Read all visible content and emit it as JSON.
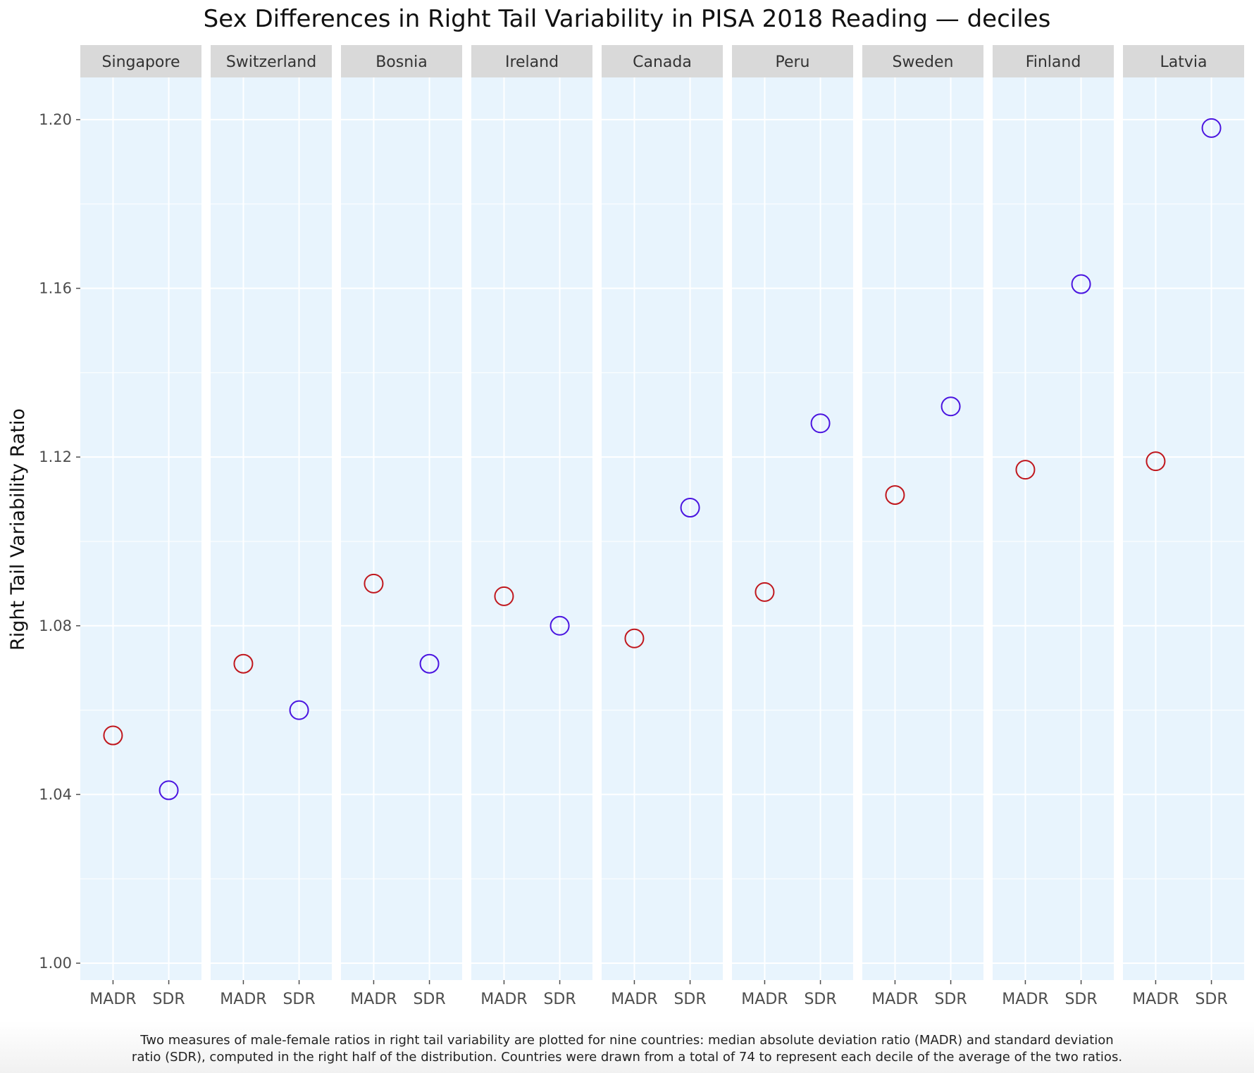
{
  "chart_data": {
    "type": "scatter",
    "title": "Sex Differences in Right Tail Variability in PISA 2018 Reading — deciles",
    "ylabel": "Right Tail Variability Ratio",
    "xlabel": "",
    "categories": [
      "MADR",
      "SDR"
    ],
    "ylim": [
      0.996,
      1.21
    ],
    "yticks": [
      "1.00",
      "1.04",
      "1.08",
      "1.12",
      "1.16",
      "1.20"
    ],
    "grid": true,
    "facets": [
      {
        "name": "Singapore",
        "values": [
          1.054,
          1.041
        ]
      },
      {
        "name": "Switzerland",
        "values": [
          1.071,
          1.06
        ]
      },
      {
        "name": "Bosnia",
        "values": [
          1.09,
          1.071
        ]
      },
      {
        "name": "Ireland",
        "values": [
          1.087,
          1.08
        ]
      },
      {
        "name": "Canada",
        "values": [
          1.077,
          1.108
        ]
      },
      {
        "name": "Peru",
        "values": [
          1.088,
          1.128
        ]
      },
      {
        "name": "Sweden",
        "values": [
          1.111,
          1.132
        ]
      },
      {
        "name": "Finland",
        "values": [
          1.117,
          1.161
        ]
      },
      {
        "name": "Latvia",
        "values": [
          1.119,
          1.198
        ]
      }
    ],
    "colors": {
      "MADR": "#c0171d",
      "SDR": "#4a14e0",
      "panel_bg": "#e8f4fd",
      "strip_bg": "#d9d9d9",
      "grid": "#ffffff"
    },
    "caption": [
      "Two measures of male-female ratios in right tail variability are plotted for nine countries: median absolute deviation ratio (MADR) and standard deviation",
      "ratio (SDR), computed in the right half of the distribution. Countries were drawn from a total of 74 to represent each decile of the average of the two ratios."
    ]
  }
}
